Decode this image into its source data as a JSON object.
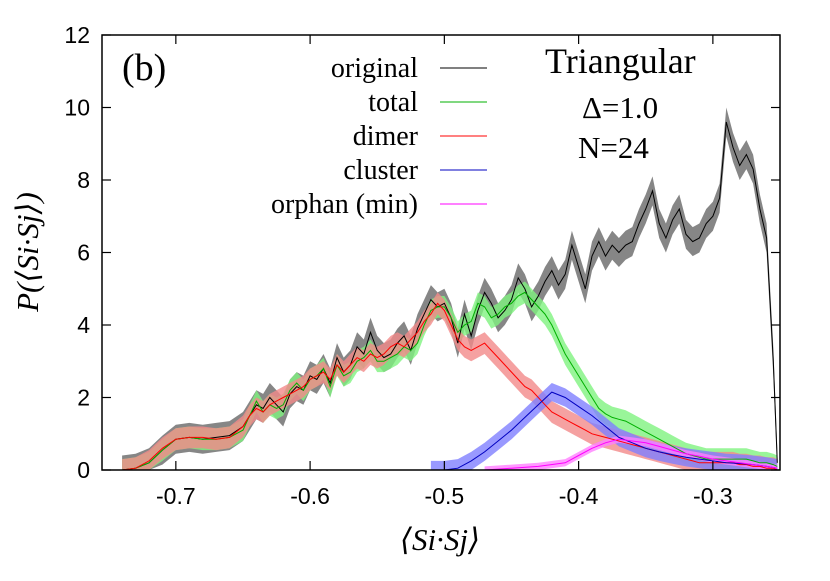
{
  "chart_data": {
    "type": "line",
    "panel_label": "(b)",
    "title": "Triangular",
    "annotations": [
      "Δ=1.0",
      "N=24"
    ],
    "xlabel": "⟨Si·Sj⟩",
    "ylabel": "P(⟨Si·Sj⟩)",
    "xlim": [
      -0.755,
      -0.25
    ],
    "ylim": [
      0,
      12
    ],
    "xticks": [
      -0.7,
      -0.6,
      -0.5,
      -0.4,
      -0.3
    ],
    "xtick_labels": [
      "-0.7",
      "-0.6",
      "-0.5",
      "-0.4",
      "-0.3"
    ],
    "yticks": [
      0,
      2,
      4,
      6,
      8,
      10,
      12
    ],
    "ytick_labels": [
      "0",
      "2",
      "4",
      "6",
      "8",
      "10",
      "12"
    ],
    "grid": false,
    "legend_position": "top-left",
    "series": [
      {
        "name": "original",
        "color": "#000000",
        "band_color": "#808080",
        "x": [
          -0.74,
          -0.73,
          -0.72,
          -0.71,
          -0.7,
          -0.69,
          -0.68,
          -0.67,
          -0.66,
          -0.65,
          -0.645,
          -0.64,
          -0.635,
          -0.63,
          -0.625,
          -0.62,
          -0.615,
          -0.61,
          -0.605,
          -0.6,
          -0.595,
          -0.59,
          -0.585,
          -0.58,
          -0.575,
          -0.57,
          -0.565,
          -0.56,
          -0.555,
          -0.55,
          -0.545,
          -0.54,
          -0.535,
          -0.53,
          -0.525,
          -0.52,
          -0.515,
          -0.51,
          -0.505,
          -0.5,
          -0.495,
          -0.49,
          -0.485,
          -0.48,
          -0.475,
          -0.47,
          -0.465,
          -0.46,
          -0.455,
          -0.45,
          -0.445,
          -0.44,
          -0.435,
          -0.43,
          -0.425,
          -0.42,
          -0.415,
          -0.41,
          -0.405,
          -0.4,
          -0.395,
          -0.39,
          -0.385,
          -0.38,
          -0.375,
          -0.37,
          -0.365,
          -0.36,
          -0.355,
          -0.35,
          -0.345,
          -0.34,
          -0.335,
          -0.33,
          -0.325,
          -0.32,
          -0.315,
          -0.31,
          -0.305,
          -0.3,
          -0.295,
          -0.29,
          -0.285,
          -0.28,
          -0.275,
          -0.27,
          -0.265,
          -0.26,
          -0.255,
          -0.252
        ],
        "y": [
          0.0,
          0.05,
          0.2,
          0.55,
          0.85,
          0.9,
          0.85,
          0.9,
          0.95,
          1.2,
          1.5,
          1.8,
          1.7,
          2.0,
          1.8,
          1.6,
          2.1,
          2.3,
          2.2,
          2.6,
          2.5,
          2.8,
          2.4,
          3.1,
          2.7,
          2.9,
          3.4,
          3.2,
          3.8,
          3.3,
          3.1,
          3.2,
          3.5,
          3.7,
          3.3,
          3.9,
          4.3,
          4.7,
          4.5,
          4.6,
          4.2,
          3.5,
          4.3,
          3.7,
          4.4,
          4.9,
          4.6,
          4.2,
          4.4,
          4.7,
          5.3,
          5.0,
          4.5,
          4.8,
          5.2,
          5.5,
          5.1,
          5.4,
          6.2,
          5.6,
          5.0,
          5.9,
          6.3,
          5.9,
          6.2,
          6.0,
          6.2,
          6.3,
          6.8,
          7.2,
          7.7,
          6.8,
          6.4,
          6.9,
          7.2,
          6.5,
          6.3,
          6.4,
          6.8,
          7.0,
          7.5,
          9.6,
          8.9,
          8.4,
          8.7,
          8.3,
          7.2,
          6.4,
          3.0,
          0.2
        ],
        "band": 0.4
      },
      {
        "name": "total",
        "color": "#00b000",
        "band_color": "#7ff27f",
        "x": [
          -0.74,
          -0.73,
          -0.72,
          -0.71,
          -0.7,
          -0.69,
          -0.68,
          -0.67,
          -0.66,
          -0.65,
          -0.645,
          -0.64,
          -0.635,
          -0.63,
          -0.625,
          -0.62,
          -0.615,
          -0.61,
          -0.605,
          -0.6,
          -0.595,
          -0.59,
          -0.585,
          -0.58,
          -0.575,
          -0.57,
          -0.565,
          -0.56,
          -0.555,
          -0.55,
          -0.545,
          -0.54,
          -0.535,
          -0.53,
          -0.525,
          -0.52,
          -0.515,
          -0.51,
          -0.505,
          -0.5,
          -0.495,
          -0.49,
          -0.485,
          -0.48,
          -0.475,
          -0.47,
          -0.465,
          -0.46,
          -0.455,
          -0.45,
          -0.445,
          -0.44,
          -0.435,
          -0.43,
          -0.425,
          -0.42,
          -0.415,
          -0.41,
          -0.405,
          -0.4,
          -0.395,
          -0.39,
          -0.385,
          -0.38,
          -0.375,
          -0.37,
          -0.365,
          -0.36,
          -0.355,
          -0.35,
          -0.345,
          -0.34,
          -0.335,
          -0.33,
          -0.325,
          -0.32,
          -0.315,
          -0.31,
          -0.305,
          -0.3,
          -0.295,
          -0.29,
          -0.285,
          -0.28,
          -0.275,
          -0.27,
          -0.265,
          -0.26,
          -0.255,
          -0.252
        ],
        "y": [
          0.0,
          0.05,
          0.2,
          0.55,
          0.85,
          0.9,
          0.85,
          0.85,
          0.9,
          1.1,
          1.5,
          1.9,
          1.6,
          1.8,
          1.7,
          1.8,
          2.2,
          2.4,
          2.2,
          2.5,
          2.6,
          2.8,
          2.3,
          2.9,
          2.6,
          2.7,
          3.0,
          3.1,
          3.3,
          3.0,
          3.0,
          3.1,
          3.2,
          3.4,
          3.3,
          3.5,
          4.0,
          4.4,
          4.5,
          4.5,
          4.2,
          3.8,
          4.0,
          4.1,
          4.6,
          4.5,
          4.2,
          4.3,
          4.5,
          4.6,
          4.8,
          4.9,
          4.7,
          4.5,
          4.3,
          4.0,
          3.6,
          3.2,
          2.9,
          2.6,
          2.3,
          2.0,
          1.7,
          1.55,
          1.45,
          1.4,
          1.35,
          1.25,
          1.15,
          1.05,
          0.95,
          0.85,
          0.75,
          0.65,
          0.55,
          0.45,
          0.4,
          0.35,
          0.3,
          0.3,
          0.3,
          0.3,
          0.3,
          0.3,
          0.3,
          0.25,
          0.2,
          0.2,
          0.15,
          0.1
        ],
        "band": 0.3
      },
      {
        "name": "dimer",
        "color": "#ff0000",
        "band_color": "#f28a8a",
        "x": [
          -0.74,
          -0.73,
          -0.72,
          -0.71,
          -0.7,
          -0.69,
          -0.68,
          -0.67,
          -0.66,
          -0.65,
          -0.645,
          -0.64,
          -0.635,
          -0.63,
          -0.625,
          -0.62,
          -0.615,
          -0.61,
          -0.605,
          -0.6,
          -0.595,
          -0.59,
          -0.585,
          -0.58,
          -0.575,
          -0.57,
          -0.565,
          -0.56,
          -0.555,
          -0.55,
          -0.545,
          -0.54,
          -0.535,
          -0.53,
          -0.525,
          -0.52,
          -0.515,
          -0.51,
          -0.505,
          -0.5,
          -0.495,
          -0.49,
          -0.485,
          -0.48,
          -0.475,
          -0.47,
          -0.465,
          -0.46,
          -0.455,
          -0.45,
          -0.445,
          -0.44,
          -0.435,
          -0.43,
          -0.425,
          -0.42,
          -0.415,
          -0.41,
          -0.405,
          -0.4,
          -0.395,
          -0.39,
          -0.385,
          -0.38,
          -0.375,
          -0.37,
          -0.365,
          -0.36,
          -0.355,
          -0.35,
          -0.345,
          -0.34,
          -0.335,
          -0.33,
          -0.325,
          -0.32,
          -0.315,
          -0.31,
          -0.305,
          -0.3,
          -0.295,
          -0.29,
          -0.285,
          -0.28,
          -0.275,
          -0.27,
          -0.265,
          -0.26,
          -0.255,
          -0.252
        ],
        "y": [
          0.0,
          0.05,
          0.25,
          0.6,
          0.85,
          0.9,
          0.9,
          0.85,
          0.9,
          1.2,
          1.5,
          1.7,
          1.6,
          1.8,
          1.9,
          2.0,
          2.1,
          2.2,
          2.3,
          2.5,
          2.6,
          2.7,
          2.5,
          2.9,
          2.7,
          2.9,
          3.1,
          3.0,
          3.2,
          3.1,
          3.2,
          3.4,
          3.5,
          3.4,
          3.6,
          3.8,
          4.1,
          4.3,
          4.6,
          4.4,
          4.0,
          3.6,
          3.4,
          3.3,
          3.4,
          3.5,
          3.3,
          3.1,
          2.9,
          2.7,
          2.5,
          2.3,
          2.2,
          2.0,
          1.8,
          1.6,
          1.5,
          1.4,
          1.3,
          1.2,
          1.1,
          1.0,
          0.95,
          0.9,
          0.85,
          0.8,
          0.75,
          0.7,
          0.65,
          0.6,
          0.55,
          0.5,
          0.45,
          0.4,
          0.35,
          0.3,
          0.25,
          0.2,
          0.2,
          0.2,
          0.2,
          0.2,
          0.2,
          0.15,
          0.15,
          0.1,
          0.1,
          0.05,
          0.05,
          0.0
        ],
        "band": 0.3
      },
      {
        "name": "cluster",
        "color": "#0000c0",
        "band_color": "#8080ff",
        "x": [
          -0.51,
          -0.5,
          -0.49,
          -0.48,
          -0.47,
          -0.46,
          -0.45,
          -0.44,
          -0.43,
          -0.42,
          -0.41,
          -0.4,
          -0.39,
          -0.38,
          -0.37,
          -0.36,
          -0.35,
          -0.34,
          -0.33,
          -0.32,
          -0.31,
          -0.3,
          -0.29,
          -0.28,
          -0.27,
          -0.26,
          -0.252
        ],
        "y": [
          0.0,
          0.0,
          0.05,
          0.25,
          0.5,
          0.8,
          1.1,
          1.45,
          1.8,
          2.15,
          2.0,
          1.75,
          1.5,
          1.2,
          0.9,
          0.75,
          0.6,
          0.5,
          0.42,
          0.35,
          0.3,
          0.25,
          0.2,
          0.18,
          0.15,
          0.1,
          0.05
        ],
        "band": 0.25
      },
      {
        "name": "orphan (min)",
        "color": "#ff00ff",
        "band_color": "#ff80ff",
        "x": [
          -0.47,
          -0.45,
          -0.43,
          -0.41,
          -0.4,
          -0.39,
          -0.38,
          -0.37,
          -0.36,
          -0.35,
          -0.34,
          -0.33,
          -0.32,
          -0.31,
          -0.3,
          -0.29,
          -0.28,
          -0.27,
          -0.26,
          -0.252
        ],
        "y": [
          0.0,
          0.05,
          0.1,
          0.2,
          0.4,
          0.6,
          0.75,
          0.85,
          0.8,
          0.75,
          0.65,
          0.55,
          0.45,
          0.38,
          0.3,
          0.25,
          0.2,
          0.15,
          0.1,
          0.05
        ],
        "band": 0.1
      }
    ]
  }
}
